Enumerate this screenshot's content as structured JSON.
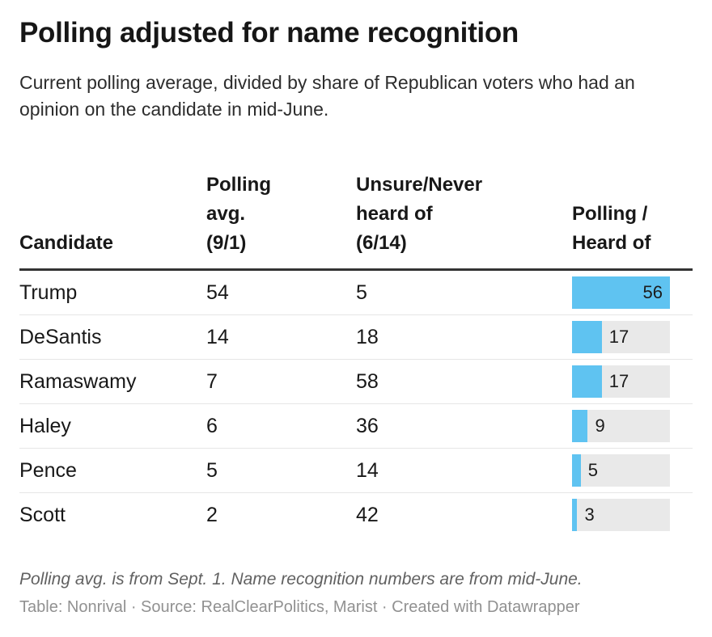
{
  "header": {
    "title": "Polling adjusted for name recognition",
    "subtitle": "Current polling average, divided by share of Republican voters who had an opinion on the candidate in mid-June."
  },
  "table": {
    "column_headers": [
      {
        "name": "candidate",
        "lines": [
          "Candidate"
        ]
      },
      {
        "name": "polling-avg",
        "lines": [
          "Polling",
          "avg.",
          "(9/1)"
        ]
      },
      {
        "name": "unsure-never-heard",
        "lines": [
          "Unsure/Never",
          "heard of",
          "(6/14)"
        ]
      },
      {
        "name": "polling-per-heard",
        "lines": [
          "Polling /",
          "Heard of"
        ]
      }
    ]
  },
  "chart_data": {
    "type": "table",
    "title": "Polling adjusted for name recognition",
    "subtitle": "Current polling average, divided by share of Republican voters who had an opinion on the candidate in mid-June.",
    "columns": [
      "Candidate",
      "Polling avg. (9/1)",
      "Unsure/Never heard of (6/14)",
      "Polling / Heard of"
    ],
    "rows": [
      {
        "candidate": "Trump",
        "polling_avg": 54,
        "unsure_never_heard": 5,
        "polling_per_heard": 56
      },
      {
        "candidate": "DeSantis",
        "polling_avg": 14,
        "unsure_never_heard": 18,
        "polling_per_heard": 17
      },
      {
        "candidate": "Ramaswamy",
        "polling_avg": 7,
        "unsure_never_heard": 58,
        "polling_per_heard": 17
      },
      {
        "candidate": "Haley",
        "polling_avg": 6,
        "unsure_never_heard": 36,
        "polling_per_heard": 9
      },
      {
        "candidate": "Pence",
        "polling_avg": 5,
        "unsure_never_heard": 14,
        "polling_per_heard": 5
      },
      {
        "candidate": "Scott",
        "polling_avg": 2,
        "unsure_never_heard": 42,
        "polling_per_heard": 3
      }
    ],
    "bar_column": "Polling / Heard of",
    "bar_max": 56,
    "legend_position": "none",
    "grid": "row-separators-only"
  },
  "colors": {
    "bar_fill": "#5fc3f1",
    "bar_track": "#e9e9e9",
    "header_rule": "#333333",
    "row_separator": "#e6e6e6"
  },
  "footer": {
    "note": "Polling avg. is from Sept. 1. Name recognition numbers are from mid-June.",
    "byline": "Table: Nonrival · Source: RealClearPolitics, Marist · Created with Datawrapper"
  }
}
